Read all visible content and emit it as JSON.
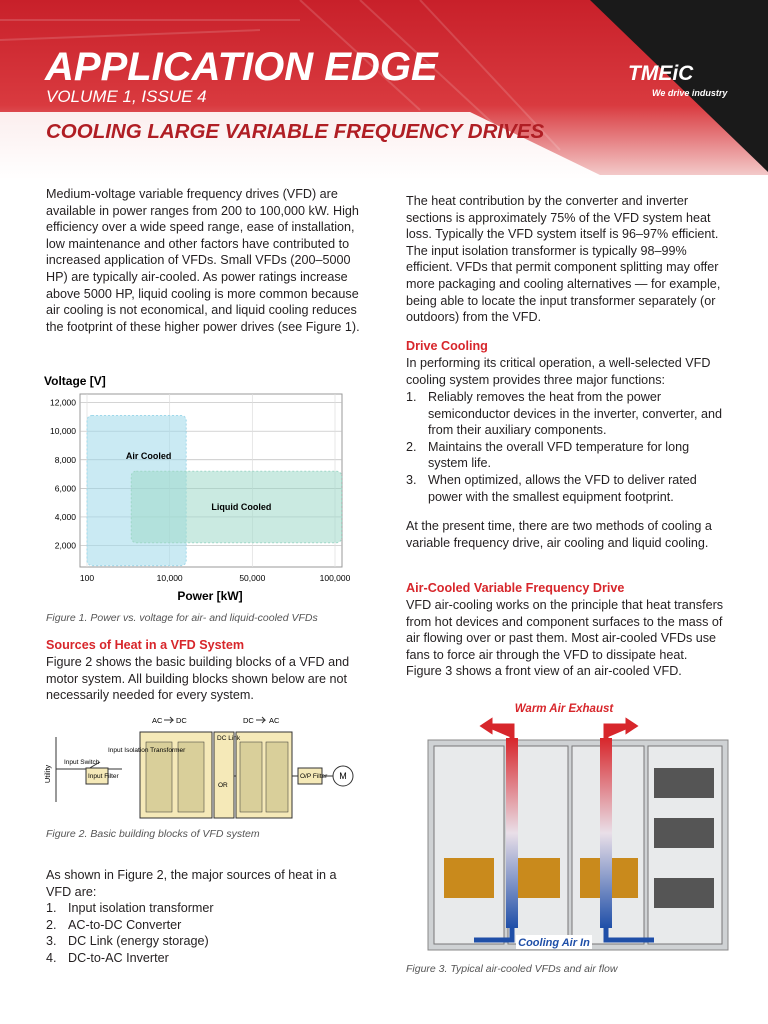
{
  "header": {
    "title": "APPLICATION EDGE",
    "volume": "VOLUME 1, ISSUE 4",
    "subtitle": "COOLING LARGE VARIABLE FREQUENCY DRIVES",
    "logo": "TMEiC",
    "tagline": "We drive industry"
  },
  "left": {
    "intro": "Medium-voltage variable frequency drives (VFD) are available in power ranges from 200 to 100,000 kW. High efficiency over a wide speed range, ease of installation, low maintenance and other factors have contributed to increased application of VFDs. Small VFDs (200–5000 HP) are typically air-cooled. As power ratings increase above 5000 HP, liquid cooling is more common because air cooling is not economical, and liquid cooling reduces the footprint of these higher power drives (see Figure 1).",
    "figure1": {
      "y_label": "Voltage [V]",
      "x_label": "Power [kW]",
      "ylim": [
        500,
        12600
      ],
      "yticks": [
        {
          "value": 2000,
          "label": "2,000"
        },
        {
          "value": 4000,
          "label": "4,000"
        },
        {
          "value": 6000,
          "label": "6,000"
        },
        {
          "value": 8000,
          "label": "8,000"
        },
        {
          "value": 10000,
          "label": "10,000"
        },
        {
          "value": 12000,
          "label": "12,000"
        }
      ],
      "xticks": [
        100,
        {
          "value": 10000,
          "label": "10,000"
        },
        {
          "value": 50000,
          "label": "50,000"
        },
        {
          "value": 100000,
          "label": "100,000"
        }
      ],
      "regions": [
        {
          "name": "Air Cooled",
          "x": [
            100,
            18000
          ],
          "y": [
            600,
            11100
          ],
          "color": "#9fd8ea"
        },
        {
          "name": "Liquid Cooled",
          "x": [
            5400,
            104000
          ],
          "y": [
            2200,
            7200
          ],
          "color": "#9fd8c8"
        }
      ],
      "caption": "Figure 1. Power vs. voltage for air- and liquid-cooled VFDs"
    },
    "section1": {
      "heading": "Sources of Heat in a VFD System",
      "text": "Figure 2 shows the basic building blocks of a VFD and motor system. All building blocks shown below are not necessarily needed for every system."
    },
    "figure2": {
      "utility": "Utility",
      "input_switch": "Input Switch",
      "input_filter": "Input Filter",
      "transformer": "Input Isolation Transformer",
      "conv_from": "AC",
      "conv_to": "DC",
      "dc_link": "DC Link",
      "or": "OR",
      "inv_from": "DC",
      "inv_to": "AC",
      "op_filter": "O/P Filter",
      "motor": "M",
      "caption": "Figure 2. Basic building blocks of VFD system"
    },
    "heat_intro": "As shown in Figure 2, the major sources of heat in a VFD are:",
    "heat_list": [
      {
        "marker": "1.",
        "text": "Input isolation transformer"
      },
      {
        "marker": "2.",
        "text": "AC-to-DC Converter"
      },
      {
        "marker": "3.",
        "text": "DC Link (energy storage)"
      },
      {
        "marker": "4.",
        "text": "DC-to-AC Inverter"
      }
    ]
  },
  "right": {
    "para1": "The heat contribution by the converter and inverter sections is approximately 75% of the VFD system heat loss. Typically the VFD system itself is 96–97% efficient. The input isolation transformer is typically 98–99% efficient. VFDs that permit component splitting may offer more packaging and cooling alternatives — for example, being able to locate the input transformer separately (or outdoors) from the VFD.",
    "drive_cooling": {
      "heading": "Drive Cooling",
      "text": "In performing its critical operation, a well-selected VFD cooling system provides three major functions:",
      "list": [
        {
          "marker": "1.",
          "text": "Reliably removes the heat from the power semiconductor devices in the inverter, converter, and from their auxiliary components."
        },
        {
          "marker": "2.",
          "text": "Maintains the overall VFD temperature for long system life."
        },
        {
          "marker": "3.",
          "text": "When optimized, allows the VFD to deliver rated power with the smallest equipment footprint."
        }
      ]
    },
    "para2": "At the present time, there are two methods of cooling a variable frequency drive, air cooling and liquid cooling.",
    "air_cooled": {
      "heading": "Air-Cooled Variable Frequency Drive",
      "text": "VFD air-cooling works on the principle that heat transfers from hot devices and component surfaces to the mass of air flowing over or past them. Most air-cooled VFDs use fans to force air through the VFD to dissipate heat. Figure 3 shows a front view of an air-cooled VFD."
    },
    "figure3": {
      "exhaust": "Warm Air Exhaust",
      "intake": "Cooling Air In",
      "caption": "Figure 3. Typical air-cooled VFDs and air flow"
    }
  }
}
